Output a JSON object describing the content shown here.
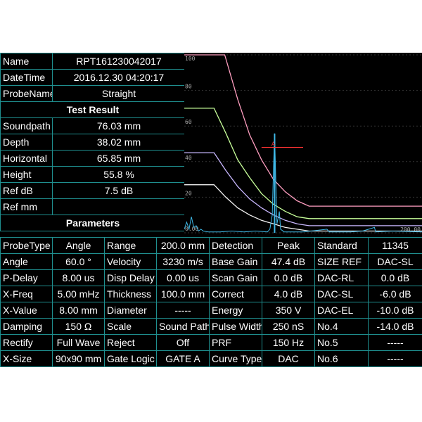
{
  "info": {
    "rows": [
      {
        "label": "Name",
        "value": "RPT161230042017"
      },
      {
        "label": "DateTime",
        "value": "2016.12.30  04:20:17"
      },
      {
        "label": "ProbeName",
        "value": "Straight"
      },
      {
        "label": "Soundpath",
        "value": "76.03 mm"
      },
      {
        "label": "Depth",
        "value": "38.02 mm"
      },
      {
        "label": "Horizontal",
        "value": "65.85 mm"
      },
      {
        "label": "Height",
        "value": "55.8 %"
      },
      {
        "label": "Ref dB",
        "value": "7.5 dB"
      },
      {
        "label": "Ref mm",
        "value": ""
      }
    ],
    "test_result_title": "Test Result",
    "parameters_title": "Parameters"
  },
  "params": {
    "rows": [
      [
        "ProbeType",
        "Angle",
        "Range",
        "200.0 mm",
        "Detection",
        "Peak",
        "Standard",
        "11345"
      ],
      [
        "Angle",
        "60.0 °",
        "Velocity",
        "3230 m/s",
        "Base Gain",
        "47.4 dB",
        "SIZE REF",
        "DAC-SL"
      ],
      [
        "P-Delay",
        "8.00 us",
        "Disp Delay",
        "0.00 us",
        "Scan Gain",
        "0.0 dB",
        "DAC-RL",
        "0.0 dB"
      ],
      [
        "X-Freq",
        "5.00 mHz",
        "Thickness",
        "100.0 mm",
        "Correct",
        "4.0 dB",
        "DAC-SL",
        "-6.0 dB"
      ],
      [
        "X-Value",
        "8.00 mm",
        "Diameter",
        "-----",
        "Energy",
        "350 V",
        "DAC-EL",
        "-10.0 dB"
      ],
      [
        "Damping",
        "150 Ω",
        "Scale",
        "Sound Path",
        "Pulse Width",
        "250 nS",
        "No.4",
        "-14.0 dB"
      ],
      [
        "Rectify",
        "Full Wave",
        "Reject",
        "Off",
        "PRF",
        "150 Hz",
        "No.5",
        "-----"
      ],
      [
        "X-Size",
        "90x90 mm",
        "Gate Logic",
        "GATE A",
        "Curve Type",
        "DAC",
        "No.6",
        "-----"
      ]
    ]
  },
  "scope": {
    "y_ticks": [
      "100",
      "80",
      "60",
      "40",
      "20",
      "0.00"
    ],
    "x_end_label": "200.00",
    "gate_label": "A",
    "colors": {
      "grid": "#333333",
      "axis_text": "#aaaaaa",
      "curve_rl": "#ff9ec0",
      "curve_sl": "#c8ff9a",
      "curve_el": "#c9b8ff",
      "curve_4": "#f2f2f2",
      "echo": "#3fb8e6",
      "gate": "#ff3333"
    },
    "chart_data": {
      "type": "line",
      "xlim": [
        0,
        200
      ],
      "ylim": [
        0,
        100
      ],
      "series": [
        {
          "values": [
            [
              0,
              100
            ],
            [
              34,
              100
            ],
            [
              45,
              75
            ],
            [
              55,
              55
            ],
            [
              65,
              41
            ],
            [
              75,
              30
            ],
            [
              85,
              23
            ],
            [
              95,
              18
            ],
            [
              105,
              15
            ],
            [
              200,
              15
            ]
          ]
        },
        {
          "values": [
            [
              0,
              70
            ],
            [
              25,
              70
            ],
            [
              35,
              56
            ],
            [
              45,
              41
            ],
            [
              55,
              31
            ],
            [
              65,
              22
            ],
            [
              75,
              16
            ],
            [
              85,
              12
            ],
            [
              95,
              9
            ],
            [
              105,
              8
            ],
            [
              200,
              8
            ]
          ]
        },
        {
          "values": [
            [
              0,
              45
            ],
            [
              25,
              45
            ],
            [
              35,
              35
            ],
            [
              45,
              26
            ],
            [
              55,
              19
            ],
            [
              65,
              14
            ],
            [
              75,
              10
            ],
            [
              85,
              7
            ],
            [
              95,
              5
            ],
            [
              105,
              4
            ],
            [
              200,
              4
            ]
          ]
        },
        {
          "values": [
            [
              0,
              27
            ],
            [
              25,
              27
            ],
            [
              35,
              20
            ],
            [
              45,
              14
            ],
            [
              55,
              10
            ],
            [
              65,
              7
            ],
            [
              75,
              5
            ],
            [
              85,
              3
            ],
            [
              95,
              2
            ],
            [
              105,
              1
            ],
            [
              200,
              1
            ]
          ]
        }
      ],
      "echo": {
        "x": 76.0,
        "peak": 55.8
      },
      "gate": {
        "x_start": 65,
        "x_end": 100,
        "level": 48
      }
    }
  }
}
